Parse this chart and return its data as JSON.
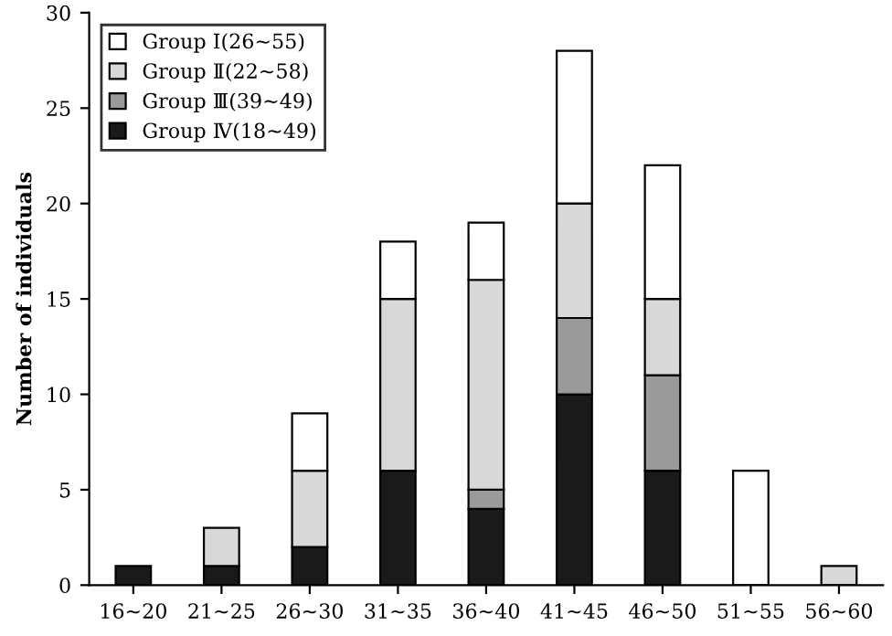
{
  "chart_data": {
    "type": "bar",
    "stacked": true,
    "ylabel": "Number of individuals",
    "categories": [
      "16~20",
      "21~25",
      "26~30",
      "31~35",
      "36~40",
      "41~45",
      "46~50",
      "51~55",
      "56~60"
    ],
    "series": [
      {
        "name": "Group Ⅳ(18~49)",
        "color": "#1a1a1a",
        "values": [
          1,
          1,
          2,
          6,
          4,
          10,
          6,
          null,
          null
        ]
      },
      {
        "name": "Group Ⅲ(39~49)",
        "color": "#9a9a9a",
        "values": [
          null,
          null,
          null,
          null,
          1,
          4,
          5,
          null,
          null
        ]
      },
      {
        "name": "Group Ⅱ(22~58)",
        "color": "#d8d8d8",
        "values": [
          null,
          2,
          4,
          9,
          11,
          6,
          4,
          null,
          1
        ]
      },
      {
        "name": "Group Ⅰ(26~55)",
        "color": "#ffffff",
        "values": [
          null,
          null,
          3,
          3,
          3,
          8,
          7,
          6,
          null
        ]
      }
    ],
    "ylim": [
      0,
      30
    ],
    "yticks": [
      0,
      5,
      10,
      15,
      20,
      25,
      30
    ],
    "grid": false,
    "legend": "top left"
  }
}
